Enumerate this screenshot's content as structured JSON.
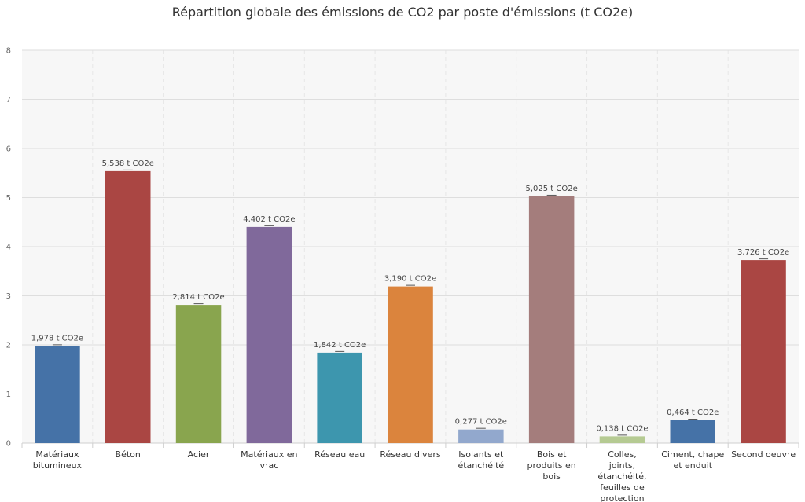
{
  "chart_data": {
    "type": "bar",
    "title": "Répartition globale des émissions de CO2 par poste d'émissions (t CO2e)",
    "xlabel": "",
    "ylabel": "",
    "ylim": [
      0,
      8
    ],
    "yticks": [
      0,
      1,
      2,
      3,
      4,
      5,
      6,
      7,
      8
    ],
    "grid": true,
    "legend": "none",
    "unit_suffix": "t CO2e",
    "categories": [
      "Matériaux bitumineux",
      "Béton",
      "Acier",
      "Matériaux en vrac",
      "Réseau eau",
      "Réseau divers",
      "Isolants et étanchéité",
      "Bois et produits en bois",
      "Colles, joints, étanchéité, feuilles de protection",
      "Ciment, chape et enduit",
      "Second oeuvre"
    ],
    "values": [
      1.978,
      5.538,
      2.814,
      4.402,
      1.842,
      3.19,
      0.277,
      5.025,
      0.138,
      0.464,
      3.726
    ],
    "data_labels": [
      "1,978 t CO2e",
      "5,538 t CO2e",
      "2,814 t CO2e",
      "4,402 t CO2e",
      "1,842 t CO2e",
      "3,190 t CO2e",
      "0,277 t CO2e",
      "5,025 t CO2e",
      "0,138 t CO2e",
      "0,464 t CO2e",
      "3,726 t CO2e"
    ],
    "colors": [
      "#4572A7",
      "#AA4643",
      "#89A54E",
      "#80699B",
      "#3D96AE",
      "#DB843D",
      "#92A8CD",
      "#A47D7C",
      "#B5CA92",
      "#4572A7",
      "#AA4643"
    ]
  }
}
